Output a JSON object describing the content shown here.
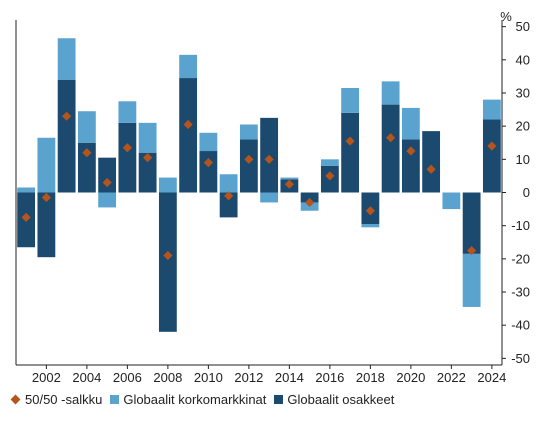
{
  "chart_data": {
    "type": "bar",
    "stacked": true,
    "categories": [
      2001,
      2002,
      2003,
      2004,
      2005,
      2006,
      2007,
      2008,
      2009,
      2010,
      2011,
      2012,
      2013,
      2014,
      2015,
      2016,
      2017,
      2018,
      2019,
      2020,
      2021,
      2022,
      2023,
      2024
    ],
    "x_tick_labels": [
      "2002",
      "2004",
      "2006",
      "2008",
      "2010",
      "2012",
      "2014",
      "2016",
      "2018",
      "2020",
      "2022",
      "2024"
    ],
    "series": [
      {
        "name": "Globaalit osakkeet",
        "type": "bar",
        "color": "#1b4a6e",
        "values": [
          -16.5,
          -19.5,
          34,
          15,
          10.5,
          21,
          12,
          -42,
          34.5,
          12.5,
          -7.5,
          16,
          22.5,
          4,
          -3,
          8,
          24,
          -9.5,
          26.5,
          16,
          18.5,
          0,
          -18.5,
          22
        ]
      },
      {
        "name": "Globaalit korkomarkkinat",
        "type": "bar",
        "color": "#5ba3cf",
        "values": [
          1.5,
          16.5,
          12.5,
          9.5,
          -4.5,
          6.5,
          9,
          4.5,
          7,
          5.5,
          5.5,
          4.5,
          -3,
          0.5,
          -2.5,
          2,
          7.5,
          -1,
          7,
          9.5,
          0,
          -5,
          -16,
          6
        ]
      },
      {
        "name": "50/50 -salkku",
        "type": "scatter",
        "marker": "diamond",
        "color": "#b5541c",
        "values": [
          -7.5,
          -1.5,
          23,
          12,
          3,
          13.5,
          10.5,
          -19,
          20.5,
          9,
          -1,
          10,
          10,
          2.5,
          -3,
          5,
          15.5,
          -5.5,
          16.5,
          12.5,
          7,
          null,
          -17.5,
          14
        ]
      }
    ],
    "y_axis": {
      "position": "right",
      "unit": "%",
      "ticks": [
        50,
        40,
        30,
        20,
        10,
        0,
        -10,
        -20,
        -30,
        -40,
        -50
      ],
      "ylim": [
        -52,
        52
      ]
    },
    "legend": {
      "position": "bottom-left",
      "items": [
        {
          "label": "50/50 -salkku",
          "symbol": "diamond",
          "color": "#b5541c"
        },
        {
          "label": "Globaalit korkomarkkinat",
          "symbol": "square",
          "color": "#5ba3cf"
        },
        {
          "label": "Globaalit osakkeet",
          "symbol": "square",
          "color": "#1b4a6e"
        }
      ]
    },
    "grid": false
  }
}
